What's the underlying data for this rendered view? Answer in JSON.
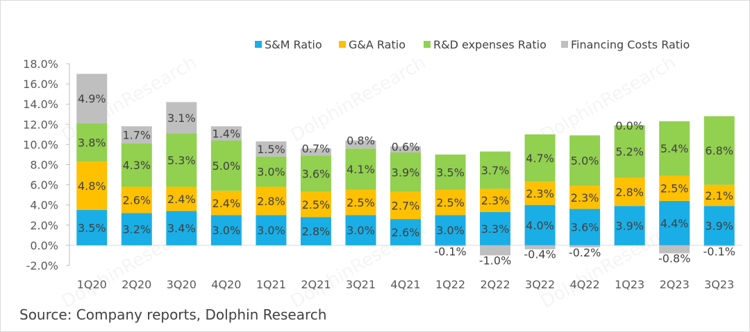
{
  "chart_data": {
    "type": "bar",
    "stacked": true,
    "title": "",
    "xlabel": "",
    "ylabel": "",
    "ylim": [
      -2,
      18
    ],
    "ytick_step": 2,
    "ytick_labels": [
      "-2.0%",
      "0.0%",
      "2.0%",
      "4.0%",
      "6.0%",
      "8.0%",
      "10.0%",
      "12.0%",
      "14.0%",
      "16.0%",
      "18.0%"
    ],
    "grid": false,
    "legend_position": "top-right",
    "categories": [
      "1Q20",
      "2Q20",
      "3Q20",
      "4Q20",
      "1Q21",
      "2Q21",
      "3Q21",
      "4Q21",
      "1Q22",
      "2Q22",
      "3Q22",
      "4Q22",
      "1Q23",
      "2Q23",
      "3Q23"
    ],
    "series": [
      {
        "name": "S&M Ratio",
        "color": "#1aaee6",
        "values": [
          3.5,
          3.2,
          3.4,
          3.0,
          3.0,
          2.8,
          3.0,
          2.6,
          3.0,
          3.3,
          4.0,
          3.6,
          3.9,
          4.4,
          3.9
        ]
      },
      {
        "name": "G&A Ratio",
        "color": "#ffc000",
        "values": [
          4.8,
          2.6,
          2.4,
          2.4,
          2.8,
          2.5,
          2.5,
          2.7,
          2.5,
          2.3,
          2.3,
          2.3,
          2.8,
          2.5,
          2.1
        ]
      },
      {
        "name": "R&D expenses Ratio",
        "color": "#92d050",
        "values": [
          3.8,
          4.3,
          5.3,
          5.0,
          3.0,
          3.6,
          4.1,
          3.9,
          3.5,
          3.7,
          4.7,
          5.0,
          5.2,
          5.4,
          6.8
        ]
      },
      {
        "name": "Financing Costs Ratio",
        "color": "#bfbfbf",
        "values": [
          4.9,
          1.7,
          3.1,
          1.4,
          1.5,
          0.7,
          0.8,
          0.6,
          -0.1,
          -1.0,
          -0.4,
          -0.2,
          0.0,
          -0.8,
          -0.1
        ]
      }
    ]
  },
  "source_text": "Source: Company reports, Dolphin Research"
}
